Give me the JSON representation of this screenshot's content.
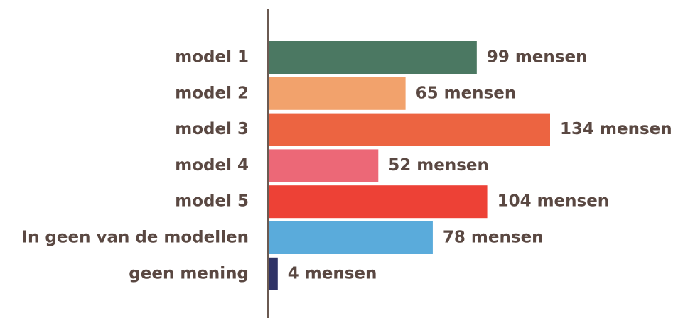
{
  "chart_data": {
    "type": "barh",
    "categories": [
      "model 1",
      "model 2",
      "model 3",
      "model 4",
      "model 5",
      "In geen van de modellen",
      "geen mening"
    ],
    "values": [
      99,
      65,
      134,
      52,
      104,
      78,
      4
    ],
    "value_labels": [
      "99 mensen",
      "65 mensen",
      "134 mensen",
      "52 mensen",
      "104 mensen",
      "78 mensen",
      "4 mensen"
    ],
    "colors": [
      "#4b7862",
      "#f2a26c",
      "#ec6441",
      "#ec6877",
      "#ed4136",
      "#5aabdb",
      "#2f3366"
    ]
  }
}
